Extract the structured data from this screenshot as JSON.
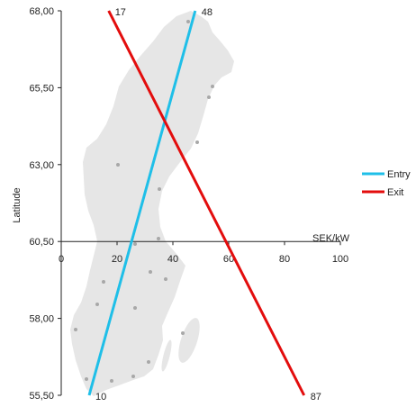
{
  "chart_data": {
    "type": "line",
    "ylabel": "Latitude",
    "xlabel": "SEK/kW",
    "ylim": [
      55.5,
      68.0
    ],
    "xlim": [
      0,
      100
    ],
    "yticks": [
      "55,50",
      "58,00",
      "60,50",
      "63,00",
      "65,50",
      "68,00"
    ],
    "ytick_values": [
      55.5,
      58.0,
      60.5,
      63.0,
      65.5,
      68.0
    ],
    "xticks": [
      "0",
      "20",
      "40",
      "60",
      "80",
      "100"
    ],
    "xtick_values": [
      0,
      20,
      40,
      60,
      80,
      100
    ],
    "x_axis_crosses_at_latitude": 60.5,
    "series": [
      {
        "name": "Entry",
        "color": "#1fbfe8",
        "points": [
          {
            "x": 10,
            "y": 55.5
          },
          {
            "x": 48,
            "y": 68.0
          }
        ],
        "labels": [
          "10",
          "48"
        ]
      },
      {
        "name": "Exit",
        "color": "#e30d0d",
        "points": [
          {
            "x": 17,
            "y": 68.0
          },
          {
            "x": 87,
            "y": 55.5
          }
        ],
        "labels": [
          "17",
          "87"
        ]
      }
    ],
    "legend_position": "right",
    "background_map": "Sweden",
    "map_color": "#e6e6e6",
    "map_city_color": "#a8a8a8",
    "grid": false
  }
}
